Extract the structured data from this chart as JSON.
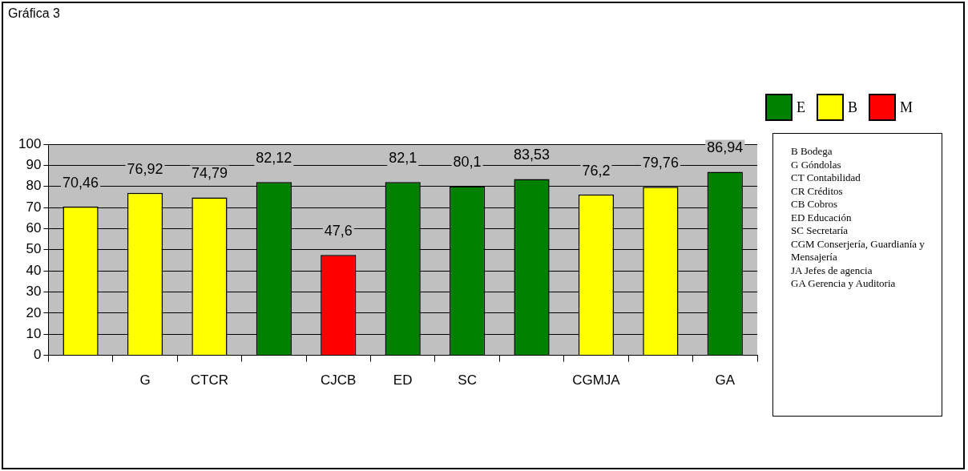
{
  "chart_data": {
    "type": "bar",
    "title": "Gráfica 3",
    "categories": [
      null,
      "G",
      "CTCR",
      null,
      "CJCB",
      "ED",
      "SC",
      null,
      "CGMJA",
      null,
      "GA"
    ],
    "legend": "top right",
    "grid": "y",
    "ylim": [
      0,
      100
    ],
    "yticks": [
      0,
      10,
      20,
      30,
      40,
      50,
      60,
      70,
      80,
      90,
      100
    ],
    "series": [
      {
        "name": "E",
        "color": "#008000",
        "values": [
          null,
          null,
          null,
          82.12,
          null,
          82.1,
          80.1,
          83.53,
          null,
          null,
          86.94
        ],
        "value_labels": [
          null,
          null,
          null,
          "82,12",
          null,
          "82,1",
          "80,1",
          "83,53",
          null,
          null,
          "86,94"
        ]
      },
      {
        "name": "B",
        "color": "#ffff00",
        "values": [
          70.46,
          76.92,
          74.79,
          null,
          null,
          null,
          null,
          null,
          76.2,
          79.76,
          null
        ],
        "value_labels": [
          "70,46",
          "76,92",
          "74,79",
          null,
          null,
          null,
          null,
          null,
          "76,2",
          "79,76",
          null
        ]
      },
      {
        "name": "M",
        "color": "#ff0000",
        "values": [
          null,
          null,
          null,
          null,
          47.6,
          null,
          null,
          null,
          null,
          null,
          null
        ],
        "value_labels": [
          null,
          null,
          null,
          null,
          "47,6",
          null,
          null,
          null,
          null,
          null,
          null
        ]
      }
    ],
    "annotations": [
      "B  Bodega",
      "G   Góndolas",
      "CT  Contabilidad",
      "CR  Créditos",
      "CB  Cobros",
      "ED  Educación",
      "SC  Secretaría",
      "CGM  Conserjería, Guardianía y Mensajería",
      "JA  Jefes de agencia",
      "GA  Gerencia y Auditoria"
    ]
  }
}
